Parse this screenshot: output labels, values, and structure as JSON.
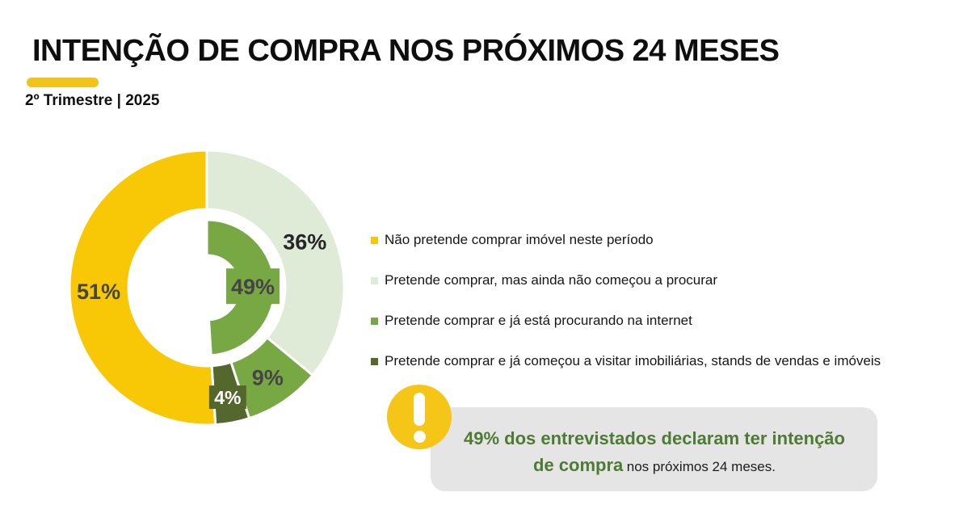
{
  "header": {
    "title": "INTENÇÃO DE COMPRA NOS PRÓXIMOS 24 MESES",
    "subtitle": "2º Trimestre | 2025",
    "accent_bar_color": "#F0C41B"
  },
  "chart_data": {
    "type": "pie",
    "subtype": "donut",
    "unit": "percent",
    "start_angle_deg": 0,
    "clockwise": true,
    "segments": [
      {
        "category": "Pretende comprar, mas ainda não começou a procurar",
        "value": 36,
        "color": "#DFEAD7",
        "label": "36%",
        "label_style": "text",
        "label_color": "#262626"
      },
      {
        "category": "Pretende comprar e já está procurando na internet",
        "value": 9,
        "color": "#78A844",
        "label": "9%",
        "label_style": "text",
        "label_color": "#454545"
      },
      {
        "category": "Pretende comprar e já começou a visitar imobiliárias, stands de vendas e imóveis",
        "value": 4,
        "color": "#54682E",
        "label": "4%",
        "label_style": "badge",
        "label_color": "#FFFFFF"
      },
      {
        "category": "Não pretende comprar imóvel neste período",
        "value": 51,
        "color": "#F8C705",
        "label": "51%",
        "label_style": "text",
        "label_color": "#454545"
      }
    ],
    "inner_ring": {
      "value": 49,
      "label": "49%",
      "color": "#78A844",
      "label_style": "badge",
      "label_color": "#454545"
    }
  },
  "legend": {
    "items": [
      {
        "label": "Não pretende comprar imóvel neste período",
        "color": "#F8C705"
      },
      {
        "label": "Pretende comprar, mas ainda não começou a procurar",
        "color": "#DFEAD7"
      },
      {
        "label": "Pretende comprar e já está procurando na internet",
        "color": "#78A844"
      },
      {
        "label": "Pretende comprar e já começou a visitar imobiliárias, stands de vendas e imóveis",
        "color": "#54682E"
      }
    ]
  },
  "callout": {
    "icon": "exclamation-icon",
    "icon_color": "#F5C518",
    "box_color": "#E5E5E5",
    "highlight_color": "#4E7B34",
    "highlight_line1": "49% dos entrevistados declaram ter intenção",
    "highlight_line2": "de compra",
    "rest": "nos próximos 24 meses."
  }
}
